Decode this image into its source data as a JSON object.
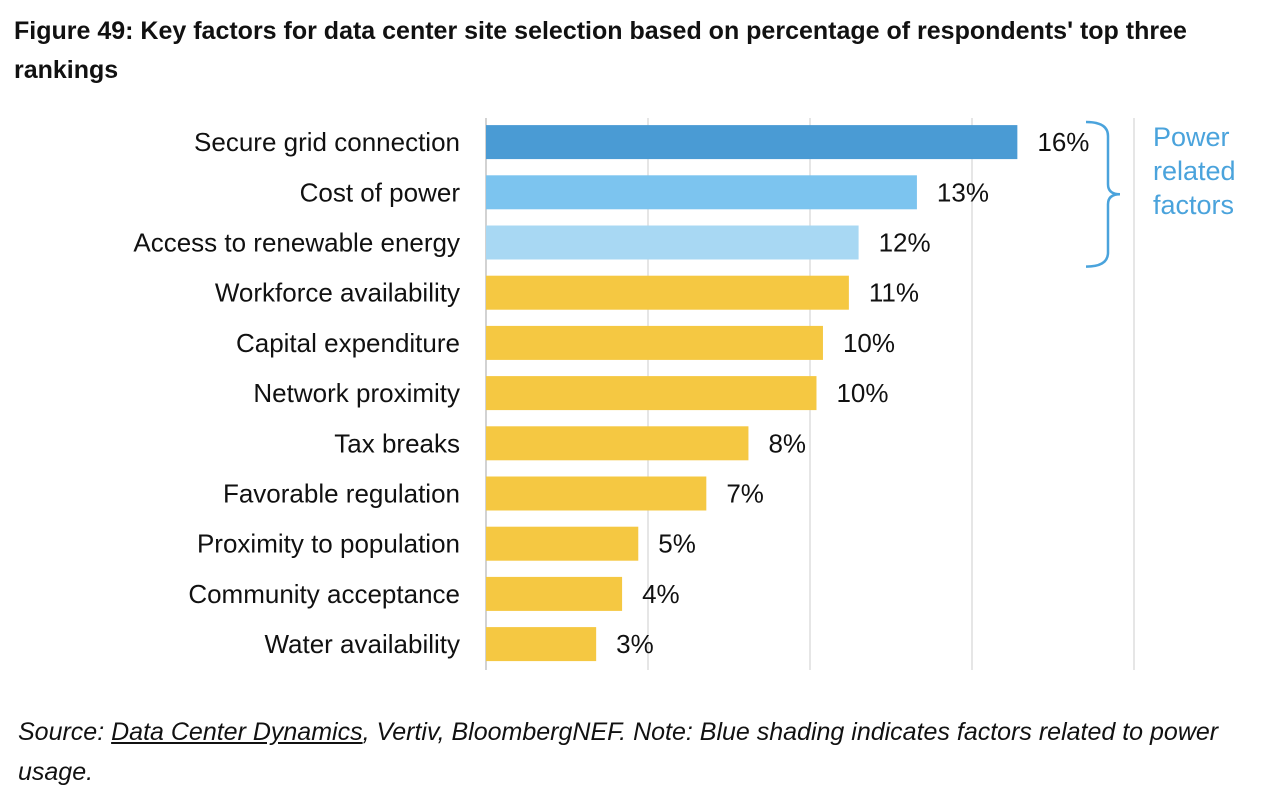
{
  "chart_data": {
    "type": "bar",
    "orientation": "horizontal",
    "title": "Figure 49: Key factors for data center site selection based on percentage of respondents' top three rankings",
    "categories": [
      "Secure grid connection",
      "Cost of power",
      "Access to renewable energy",
      "Workforce availability",
      "Capital expenditure",
      "Network proximity",
      "Tax breaks",
      "Favorable regulation",
      "Proximity to population",
      "Community acceptance",
      "Water availability"
    ],
    "values": [
      16.4,
      13.3,
      11.5,
      11.2,
      10.4,
      10.2,
      8.1,
      6.8,
      4.7,
      4.2,
      3.4
    ],
    "data_labels": [
      "16%",
      "13%",
      "12%",
      "11%",
      "10%",
      "10%",
      "8%",
      "7%",
      "5%",
      "4%",
      "3%"
    ],
    "colors": [
      "#4a9bd4",
      "#7cc4ef",
      "#a8d8f3",
      "#f5c842",
      "#f5c842",
      "#f5c842",
      "#f5c842",
      "#f5c842",
      "#f5c842",
      "#f5c842",
      "#f5c842"
    ],
    "xlim": [
      0,
      20
    ],
    "gridlines": true,
    "grid_step": 5,
    "xlabel": "",
    "ylabel": "",
    "annotation": {
      "lines": [
        "Power",
        "related",
        "factors"
      ],
      "color": "#4aa3dc",
      "bracket_spans": [
        0,
        2
      ]
    }
  },
  "source": {
    "prefix": "Source: ",
    "link": "Data Center Dynamics",
    "rest": ", Vertiv, BloombergNEF. Note: Blue shading indicates factors related to power usage."
  }
}
